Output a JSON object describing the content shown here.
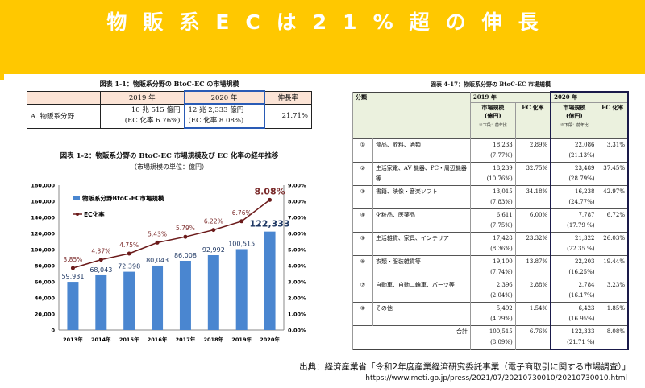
{
  "title": "物販系ECは21%超の伸長",
  "colors": {
    "band": "#FFC800",
    "bar": "#4A86D0",
    "line": "#6B1A1A",
    "label": "#7B2B2B"
  },
  "table1": {
    "caption": "図表 1-1：物販系分野の BtoC-EC の市場規模",
    "headers": [
      "",
      "2019 年",
      "2020 年",
      "伸長率"
    ],
    "row": {
      "label": "A. 物販系分野",
      "y2019": "10 兆 515 億円",
      "y2019_rate": "(EC 化率 6.76%)",
      "y2020": "12 兆 2,333 億円",
      "y2020_rate": "(EC 化率 8.08%)",
      "growth": "21.71%"
    }
  },
  "chart_data": {
    "type": "bar",
    "title": "図表 1-2：物販系分野の BtoC-EC 市場規模及び EC 化率の経年推移",
    "subtitle": "（市場規模の単位：億円）",
    "categories": [
      "2013年",
      "2014年",
      "2015年",
      "2016年",
      "2017年",
      "2018年",
      "2019年",
      "2020年"
    ],
    "series": [
      {
        "name": "物販系分野BtoC-EC市場規模",
        "type": "bar",
        "axis": "left",
        "values": [
          59931,
          68043,
          72398,
          80043,
          86008,
          92992,
          100515,
          122333
        ],
        "labels": [
          "59,931",
          "68,043",
          "72,398",
          "80,043",
          "86,008",
          "92,992",
          "100,515",
          "122,333"
        ]
      },
      {
        "name": "EC化率",
        "type": "line",
        "axis": "right",
        "values": [
          3.85,
          4.37,
          4.75,
          5.43,
          5.79,
          6.22,
          6.76,
          8.08
        ],
        "labels": [
          "3.85%",
          "4.37%",
          "4.75%",
          "5.43%",
          "5.79%",
          "6.22%",
          "6.76%",
          "8.08%"
        ]
      }
    ],
    "ylim": [
      0,
      180000
    ],
    "y2lim": [
      0,
      9
    ],
    "yticks": [
      "0",
      "20,000",
      "40,000",
      "60,000",
      "80,000",
      "100,000",
      "120,000",
      "140,000",
      "160,000",
      "180,000"
    ],
    "y2ticks": [
      "0.00%",
      "1.00%",
      "2.00%",
      "3.00%",
      "4.00%",
      "5.00%",
      "6.00%",
      "7.00%",
      "8.00%",
      "9.00%"
    ],
    "legend": "top-left",
    "grid": false
  },
  "table2": {
    "caption": "図表 4-17：物販系分野の BtoC-EC 市場規模",
    "h_category": "分類",
    "h_2019": "2019 年",
    "h_2020": "2020 年",
    "h_size": "市場規模",
    "h_unit": "(億円)",
    "h_note": "※下段：前年比",
    "h_rate": "EC 化率",
    "rows": [
      {
        "no": "①",
        "name": "食品、飲料、酒類",
        "s19": "18,233",
        "g19": "(7.77%)",
        "r19": "2.89%",
        "s20": "22,086",
        "g20": "(21.13%)",
        "r20": "3.31%"
      },
      {
        "no": "②",
        "name": "生活家電、AV 機器、PC・周辺機器等",
        "s19": "18,239",
        "g19": "(10.76%)",
        "r19": "32.75%",
        "s20": "23,489",
        "g20": "(28.79%)",
        "r20": "37.45%"
      },
      {
        "no": "③",
        "name": "書籍、映像・音楽ソフト",
        "s19": "13,015",
        "g19": "(7.83%)",
        "r19": "34.18%",
        "s20": "16,238",
        "g20": "(24.77%)",
        "r20": "42.97%"
      },
      {
        "no": "④",
        "name": "化粧品、医薬品",
        "s19": "6,611",
        "g19": "(7.75%)",
        "r19": "6.00%",
        "s20": "7,787",
        "g20": "(17.79 %)",
        "r20": "6.72%"
      },
      {
        "no": "⑤",
        "name": "生活雑貨、家具、インテリア",
        "s19": "17,428",
        "g19": "(8.36%)",
        "r19": "23.32%",
        "s20": "21,322",
        "g20": "(22.35 %)",
        "r20": "26.03%"
      },
      {
        "no": "⑥",
        "name": "衣類・服装雑貨等",
        "s19": "19,100",
        "g19": "(7.74%)",
        "r19": "13.87%",
        "s20": "22,203",
        "g20": "(16.25%)",
        "r20": "19.44%"
      },
      {
        "no": "⑦",
        "name": "自動車、自動二輪車、パーツ等",
        "s19": "2,396",
        "g19": "(2.04%)",
        "r19": "2.88%",
        "s20": "2,784",
        "g20": "(16.17%)",
        "r20": "3.23%"
      },
      {
        "no": "⑧",
        "name": "その他",
        "s19": "5,492",
        "g19": "(4.79%)",
        "r19": "1.54%",
        "s20": "6,423",
        "g20": "(16.95%)",
        "r20": "1.85%"
      }
    ],
    "total": {
      "label": "合計",
      "s19": "100,515",
      "g19": "(8.09%)",
      "r19": "6.76%",
      "s20": "122,333",
      "g20": "(21.71 %)",
      "r20": "8.08%"
    }
  },
  "footer": {
    "source": "出典：経済産業省「令和2年度産業経済研究委託事業（電子商取引に関する市場調査）」",
    "url": "https://www.meti.go.jp/press/2021/07/20210730010/20210730010.html"
  }
}
